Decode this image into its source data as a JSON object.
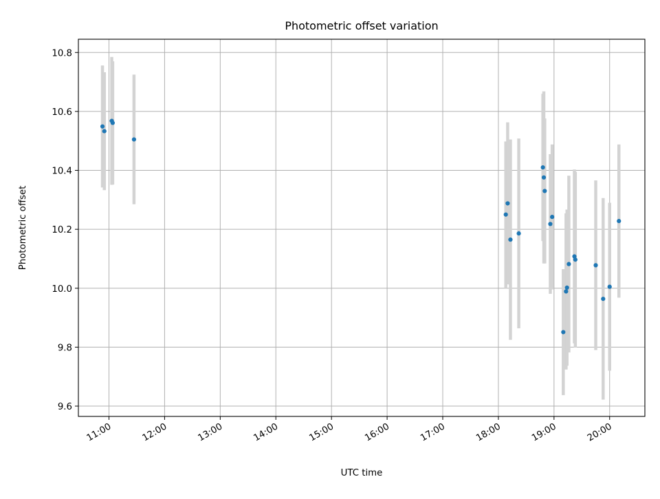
{
  "chart_data": {
    "type": "scatter",
    "title": "Photometric offset variation",
    "xlabel": "UTC time",
    "ylabel": "Photometric offset",
    "xlim": [
      "10:27",
      "20:38"
    ],
    "ylim": [
      9.565,
      10.845
    ],
    "grid": true,
    "x_ticks": [
      "11:00",
      "12:00",
      "13:00",
      "14:00",
      "15:00",
      "16:00",
      "17:00",
      "18:00",
      "19:00",
      "20:00"
    ],
    "y_ticks": [
      9.6,
      9.8,
      10.0,
      10.2,
      10.4,
      10.6,
      10.8
    ],
    "y_tick_labels": [
      "9.6",
      "9.8",
      "10.0",
      "10.2",
      "10.4",
      "10.6",
      "10.8"
    ],
    "colors": {
      "point": "#1f77b4",
      "errorbar": "#d3d3d3",
      "grid": "#b0b0b0"
    },
    "series": [
      {
        "points": [
          {
            "x": "10:53",
            "y": 10.549,
            "err": 0.207
          },
          {
            "x": "10:55",
            "y": 10.533,
            "err": 0.2
          },
          {
            "x": "11:03",
            "y": 10.568,
            "err": 0.217
          },
          {
            "x": "11:04",
            "y": 10.561,
            "err": 0.209
          },
          {
            "x": "11:27",
            "y": 10.505,
            "err": 0.22
          },
          {
            "x": "18:08",
            "y": 10.25,
            "err": 0.248
          },
          {
            "x": "18:10",
            "y": 10.288,
            "err": 0.275
          },
          {
            "x": "18:13",
            "y": 10.165,
            "err": 0.34
          },
          {
            "x": "18:22",
            "y": 10.186,
            "err": 0.322
          },
          {
            "x": "18:48",
            "y": 10.41,
            "err": 0.25
          },
          {
            "x": "18:49",
            "y": 10.376,
            "err": 0.292
          },
          {
            "x": "18:50",
            "y": 10.33,
            "err": 0.246
          },
          {
            "x": "18:56",
            "y": 10.218,
            "err": 0.237
          },
          {
            "x": "18:58",
            "y": 10.242,
            "err": 0.246
          },
          {
            "x": "19:10",
            "y": 9.851,
            "err": 0.214
          },
          {
            "x": "19:13",
            "y": 9.989,
            "err": 0.265
          },
          {
            "x": "19:14",
            "y": 10.002,
            "err": 0.265
          },
          {
            "x": "19:16",
            "y": 10.082,
            "err": 0.3
          },
          {
            "x": "19:22",
            "y": 10.108,
            "err": 0.295
          },
          {
            "x": "19:23",
            "y": 10.097,
            "err": 0.298
          },
          {
            "x": "19:45",
            "y": 10.078,
            "err": 0.288
          },
          {
            "x": "19:53",
            "y": 9.964,
            "err": 0.342
          },
          {
            "x": "20:00",
            "y": 10.005,
            "err": 0.285
          },
          {
            "x": "20:10",
            "y": 10.228,
            "err": 0.26
          }
        ]
      }
    ]
  }
}
